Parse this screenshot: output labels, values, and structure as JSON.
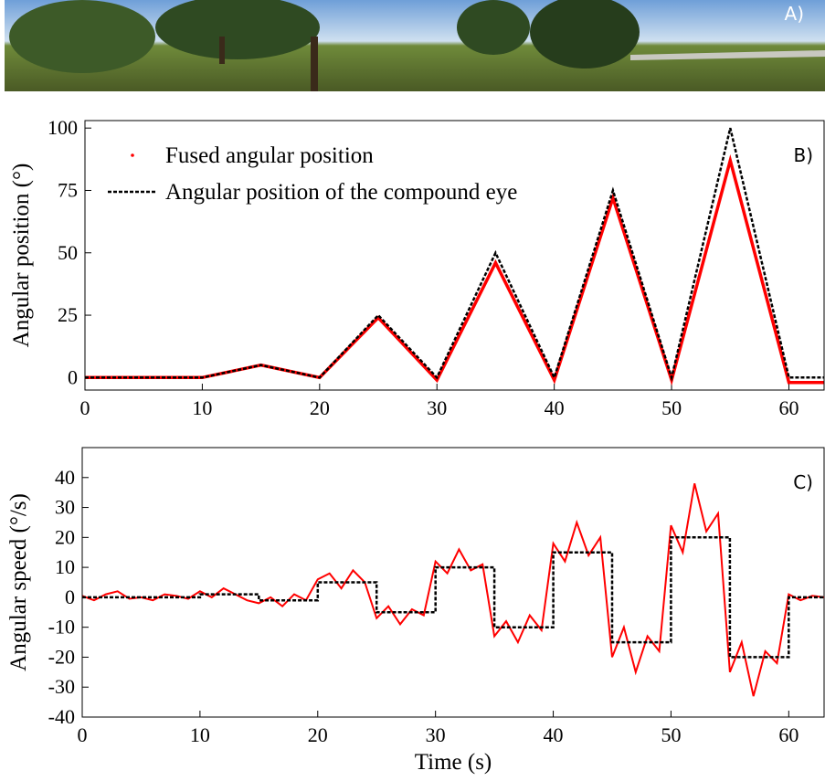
{
  "panel_a": {
    "label": "A)"
  },
  "chart_data": [
    {
      "type": "line",
      "panel_label": "B)",
      "ylabel": "Angular position (°)",
      "xlim": [
        0,
        63
      ],
      "ylim": [
        -5,
        103
      ],
      "xticks": [
        0,
        10,
        20,
        30,
        40,
        50,
        60
      ],
      "yticks": [
        0,
        25,
        50,
        75,
        100
      ],
      "legend": "upper left",
      "series": [
        {
          "name": "Fused angular position",
          "color": "#ff0000",
          "style": "solid",
          "x": [
            0,
            10,
            15,
            20,
            25,
            30,
            35,
            40,
            45,
            50,
            55,
            60,
            63
          ],
          "values": [
            0,
            0,
            5,
            0,
            24,
            -1,
            46,
            -1,
            72,
            -1,
            87,
            -2,
            -2
          ]
        },
        {
          "name": "Angular position of the compound eye",
          "color": "#000000",
          "style": "dashed",
          "x": [
            0,
            10,
            15,
            20,
            25,
            30,
            35,
            40,
            45,
            50,
            55,
            60,
            63
          ],
          "values": [
            0,
            0,
            5,
            0,
            25,
            0,
            50,
            0,
            75,
            0,
            100,
            0,
            0
          ]
        }
      ]
    },
    {
      "type": "line",
      "panel_label": "C)",
      "ylabel": "Angular speed (°/s)",
      "xlabel": "Time (s)",
      "xlim": [
        0,
        63
      ],
      "ylim": [
        -40,
        50
      ],
      "xticks": [
        0,
        10,
        20,
        30,
        40,
        50,
        60
      ],
      "yticks": [
        -40,
        -30,
        -20,
        -10,
        0,
        10,
        20,
        30,
        40
      ],
      "series": [
        {
          "color": "#ff0000",
          "style": "solid",
          "x": [
            0,
            1,
            2,
            3,
            4,
            5,
            6,
            7,
            8,
            9,
            10,
            11,
            12,
            13,
            14,
            15,
            16,
            17,
            18,
            19,
            20,
            21,
            22,
            23,
            24,
            25,
            26,
            27,
            28,
            29,
            30,
            31,
            32,
            33,
            34,
            35,
            36,
            37,
            38,
            39,
            40,
            41,
            42,
            43,
            44,
            45,
            46,
            47,
            48,
            49,
            50,
            51,
            52,
            53,
            54,
            55,
            56,
            57,
            58,
            59,
            60,
            61,
            62,
            63
          ],
          "values": [
            0.5,
            -1,
            1,
            2,
            -0.5,
            0,
            -1,
            1,
            0.5,
            -0.5,
            2,
            0,
            3,
            1,
            -1,
            -2,
            0,
            -3,
            1,
            -1,
            6,
            8,
            3,
            9,
            5,
            -7,
            -3,
            -9,
            -4,
            -6,
            12,
            8,
            16,
            9,
            11,
            -13,
            -8,
            -15,
            -6,
            -11,
            18,
            12,
            25,
            14,
            20,
            -20,
            -10,
            -25,
            -13,
            -18,
            24,
            15,
            38,
            22,
            28,
            -25,
            -15,
            -33,
            -18,
            -22,
            1,
            -1,
            0.5,
            0
          ]
        },
        {
          "color": "#000000",
          "style": "dashed",
          "x": [
            0,
            10,
            10,
            15,
            15,
            20,
            20,
            25,
            25,
            30,
            30,
            35,
            35,
            40,
            40,
            45,
            45,
            50,
            50,
            55,
            55,
            60,
            60,
            63
          ],
          "values": [
            0,
            0,
            1,
            1,
            -1,
            -1,
            5,
            5,
            -5,
            -5,
            10,
            10,
            -10,
            -10,
            15,
            15,
            -15,
            -15,
            20,
            20,
            -20,
            -20,
            0,
            0
          ]
        }
      ]
    }
  ]
}
